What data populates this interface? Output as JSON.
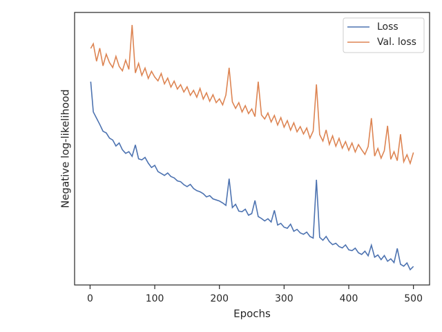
{
  "chart_data": {
    "type": "line",
    "xlabel": "Epochs",
    "ylabel": "Negative log-likelihood",
    "x": [
      1,
      5,
      10,
      15,
      20,
      25,
      30,
      35,
      40,
      45,
      50,
      55,
      60,
      65,
      70,
      75,
      80,
      85,
      90,
      95,
      100,
      105,
      110,
      115,
      120,
      125,
      130,
      135,
      140,
      145,
      150,
      155,
      160,
      165,
      170,
      175,
      180,
      185,
      190,
      195,
      200,
      205,
      210,
      215,
      220,
      225,
      230,
      235,
      240,
      245,
      250,
      255,
      260,
      265,
      270,
      275,
      280,
      285,
      290,
      295,
      300,
      305,
      310,
      315,
      320,
      325,
      330,
      335,
      340,
      345,
      350,
      355,
      360,
      365,
      370,
      375,
      380,
      385,
      390,
      395,
      400,
      405,
      410,
      415,
      420,
      425,
      430,
      435,
      440,
      445,
      450,
      455,
      460,
      465,
      470,
      475,
      480,
      485,
      490,
      495,
      500
    ],
    "series": [
      {
        "name": "Loss",
        "color": "#4c72b0",
        "values": [
          74.6,
          63.5,
          61.2,
          58.9,
          56.4,
          55.8,
          53.9,
          53.2,
          51.0,
          52.1,
          49.6,
          48.3,
          48.9,
          47.2,
          51.4,
          46.3,
          45.9,
          46.8,
          44.7,
          43.1,
          43.9,
          41.6,
          40.9,
          40.2,
          41.1,
          39.8,
          39.3,
          38.2,
          37.9,
          36.8,
          36.1,
          36.9,
          35.4,
          34.6,
          34.2,
          33.5,
          32.3,
          32.8,
          31.6,
          31.2,
          30.8,
          30.1,
          29.2,
          39.0,
          28.4,
          29.6,
          27.1,
          26.9,
          27.8,
          25.6,
          26.2,
          31.0,
          25.1,
          24.4,
          23.5,
          24.3,
          23.1,
          27.4,
          22.0,
          22.6,
          21.2,
          20.8,
          22.3,
          19.7,
          20.4,
          19.1,
          18.6,
          19.4,
          17.8,
          17.2,
          38.6,
          17.5,
          16.4,
          17.8,
          15.9,
          14.8,
          15.3,
          14.1,
          13.6,
          14.7,
          12.9,
          12.6,
          13.5,
          11.8,
          11.2,
          12.4,
          10.7,
          14.6,
          10.2,
          11.0,
          9.3,
          10.8,
          8.7,
          9.6,
          8.2,
          13.4,
          7.6,
          6.9,
          8.1,
          5.6,
          6.8
        ]
      },
      {
        "name": "Val. loss",
        "color": "#dd8452",
        "values": [
          86.8,
          88.5,
          82.1,
          86.9,
          80.4,
          84.7,
          81.6,
          79.8,
          83.9,
          80.2,
          78.6,
          82.5,
          79.1,
          95.4,
          77.8,
          81.3,
          76.9,
          79.6,
          75.8,
          78.4,
          76.3,
          74.9,
          77.6,
          73.8,
          75.9,
          72.6,
          74.8,
          71.9,
          73.5,
          70.8,
          72.7,
          69.6,
          71.4,
          68.9,
          72.1,
          68.2,
          70.5,
          67.4,
          69.8,
          66.9,
          68.3,
          66.1,
          69.7,
          79.7,
          67.2,
          64.8,
          66.9,
          63.5,
          65.8,
          62.9,
          64.6,
          61.8,
          74.6,
          62.4,
          60.9,
          63.1,
          59.8,
          62.2,
          58.7,
          61.4,
          57.9,
          60.3,
          56.8,
          59.5,
          56.2,
          58.1,
          55.4,
          57.6,
          53.9,
          56.5,
          73.6,
          55.2,
          52.8,
          56.9,
          51.6,
          54.7,
          50.9,
          53.8,
          50.2,
          52.6,
          49.4,
          52.1,
          48.8,
          51.5,
          49.6,
          47.9,
          50.8,
          61.2,
          47.3,
          50.1,
          46.5,
          49.3,
          58.4,
          46.1,
          48.9,
          45.6,
          55.3,
          45.2,
          47.8,
          44.6,
          48.6
        ]
      }
    ],
    "xlim": [
      -23.95,
      524.95
    ],
    "xticks": [
      0,
      100,
      200,
      300,
      400,
      500
    ],
    "ylim": [
      0,
      100
    ],
    "legend": "upper right"
  }
}
